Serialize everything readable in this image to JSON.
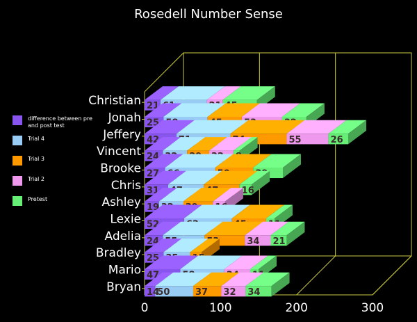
{
  "chart_data": {
    "type": "bar",
    "orientation": "horizontal",
    "stacked": true,
    "style": "3d",
    "title": "Rosedell Number Sense",
    "categories": [
      "Christian",
      "Jonah",
      "Jeffery",
      "Vincent",
      "Brooke",
      "Chris",
      "Ashley",
      "Lexie",
      "Adelia",
      "Bradley",
      "Mario",
      "Bryan"
    ],
    "xlim": [
      0,
      300
    ],
    "xticks": [
      0,
      100,
      200,
      300
    ],
    "grid": true,
    "legend_position": "left",
    "series": [
      {
        "name": "difference between pre and post test",
        "color": "#8855ee",
        "values": [
          21,
          25,
          42,
          24,
          27,
          31,
          19,
          52,
          24,
          25,
          47,
          14
        ]
      },
      {
        "name": "Trial 4",
        "color": "#99ccf5",
        "values": [
          61,
          58,
          71,
          32,
          66,
          47,
          32,
          63,
          55,
          35,
          58,
          50
        ]
      },
      {
        "name": "Trial 3",
        "color": "#ff9900",
        "values": [
          null,
          45,
          74,
          29,
          50,
          47,
          39,
          45,
          53,
          15,
          null,
          37
        ]
      },
      {
        "name": "Trial 2",
        "color": "#ee99ee",
        "values": [
          21,
          53,
          55,
          32,
          null,
          null,
          16,
          null,
          34,
          null,
          34,
          32
        ]
      },
      {
        "name": "Pretest",
        "color": "#66ee77",
        "values": [
          45,
          32,
          26,
          8,
          39,
          16,
          null,
          11,
          21,
          null,
          11,
          34
        ]
      }
    ]
  }
}
